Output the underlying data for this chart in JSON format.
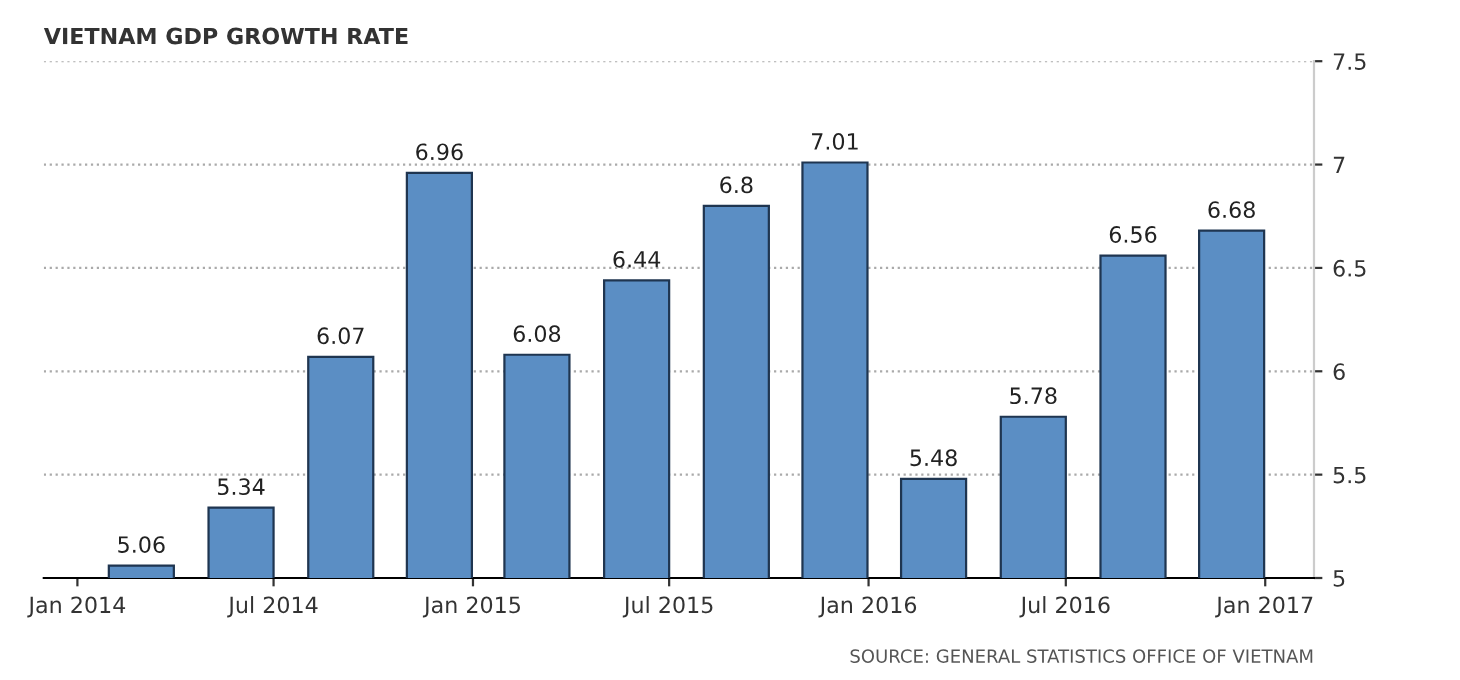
{
  "chart_data": {
    "type": "bar",
    "title": "VIETNAM GDP GROWTH RATE",
    "x": [
      "2014-03",
      "2014-06",
      "2014-09",
      "2014-12",
      "2015-03",
      "2015-06",
      "2015-09",
      "2015-12",
      "2016-03",
      "2016-06",
      "2016-09",
      "2016-12"
    ],
    "values": [
      5.06,
      5.34,
      6.07,
      6.96,
      6.08,
      6.44,
      6.8,
      7.01,
      5.48,
      5.78,
      6.56,
      6.68
    ],
    "color": "#5b8ec4",
    "data_labels": true,
    "xlim": [
      "2013-12-01",
      "2017-02-15"
    ],
    "xticks": [
      {
        "value": "2014-01",
        "label": "Jan 2014"
      },
      {
        "value": "2014-07",
        "label": "Jul 2014"
      },
      {
        "value": "2015-01",
        "label": "Jan 2015"
      },
      {
        "value": "2015-07",
        "label": "Jul 2015"
      },
      {
        "value": "2016-01",
        "label": "Jan 2016"
      },
      {
        "value": "2016-07",
        "label": "Jul 2016"
      },
      {
        "value": "2017-01",
        "label": "Jan 2017"
      }
    ],
    "ylim": [
      5,
      7.5
    ],
    "yticks": [
      5,
      5.5,
      6,
      6.5,
      7,
      7.5
    ],
    "grid": "y",
    "annotations": [
      "SOURCE: GENERAL STATISTICS OFFICE OF VIETNAM"
    ]
  }
}
